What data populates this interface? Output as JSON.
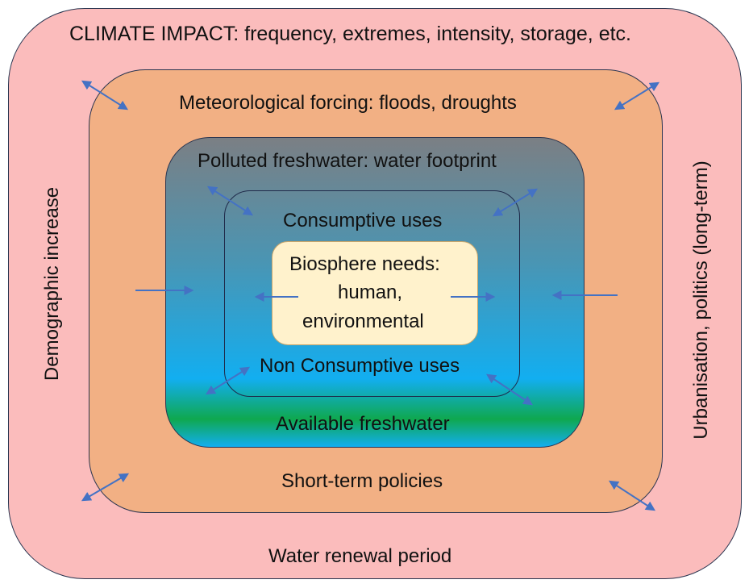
{
  "labels": {
    "climate_impact": "CLIMATE IMPACT:  frequency, extremes, intensity, storage, etc.",
    "meteorological": "Meteorological forcing: floods, droughts",
    "polluted": "Polluted freshwater: water footprint",
    "consumptive": "Consumptive uses",
    "biosphere_line1": "Biosphere needs:",
    "biosphere_line2": "human,",
    "biosphere_line3": "environmental",
    "non_consumptive": "Non Consumptive uses",
    "available": "Available freshwater",
    "short_term": "Short-term policies",
    "water_renewal": "Water renewal period",
    "demographic": "Demographic increase",
    "urbanisation": "Urbanisation, politics (long-term)"
  },
  "colors": {
    "outer_fill": "#fbbcbc",
    "orange_fill": "#f2b084",
    "polluted_top": "#7b7f84",
    "polluted_mid": "#4a95b3",
    "freshwater_blue": "#12aef0",
    "freshwater_green": "#0fa84f",
    "biosphere_fill": "#fff2cc",
    "arrow": "#4472c4",
    "border": "#2a3550"
  }
}
